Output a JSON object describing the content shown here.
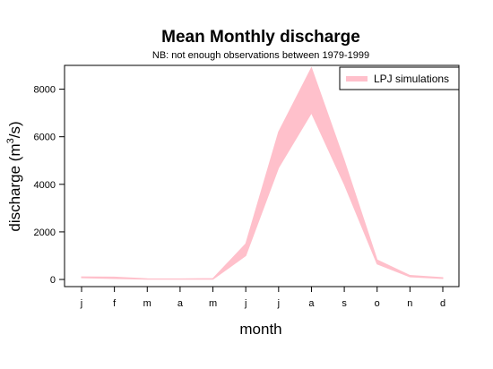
{
  "chart_data": {
    "type": "area",
    "title": "Mean Monthly discharge",
    "subtitle": "NB: not enough observations between 1979-1999",
    "xlabel": "month",
    "ylabel_main": "discharge (m",
    "ylabel_sup": "3",
    "ylabel_end": "/s)",
    "categories": [
      "j",
      "f",
      "m",
      "a",
      "m",
      "j",
      "j",
      "a",
      "s",
      "o",
      "n",
      "d"
    ],
    "y_ticks": [
      0,
      2000,
      4000,
      6000,
      8000
    ],
    "ylim": [
      -300,
      9000
    ],
    "grid": false,
    "legend_position": "top-right",
    "series": [
      {
        "name": "LPJ simulations",
        "color": "#ffc0cb",
        "lower": [
          70,
          40,
          10,
          10,
          10,
          1000,
          4700,
          7000,
          4000,
          650,
          110,
          40
        ],
        "upper": [
          110,
          100,
          30,
          25,
          40,
          1500,
          6200,
          8900,
          5000,
          820,
          170,
          80
        ]
      }
    ]
  }
}
